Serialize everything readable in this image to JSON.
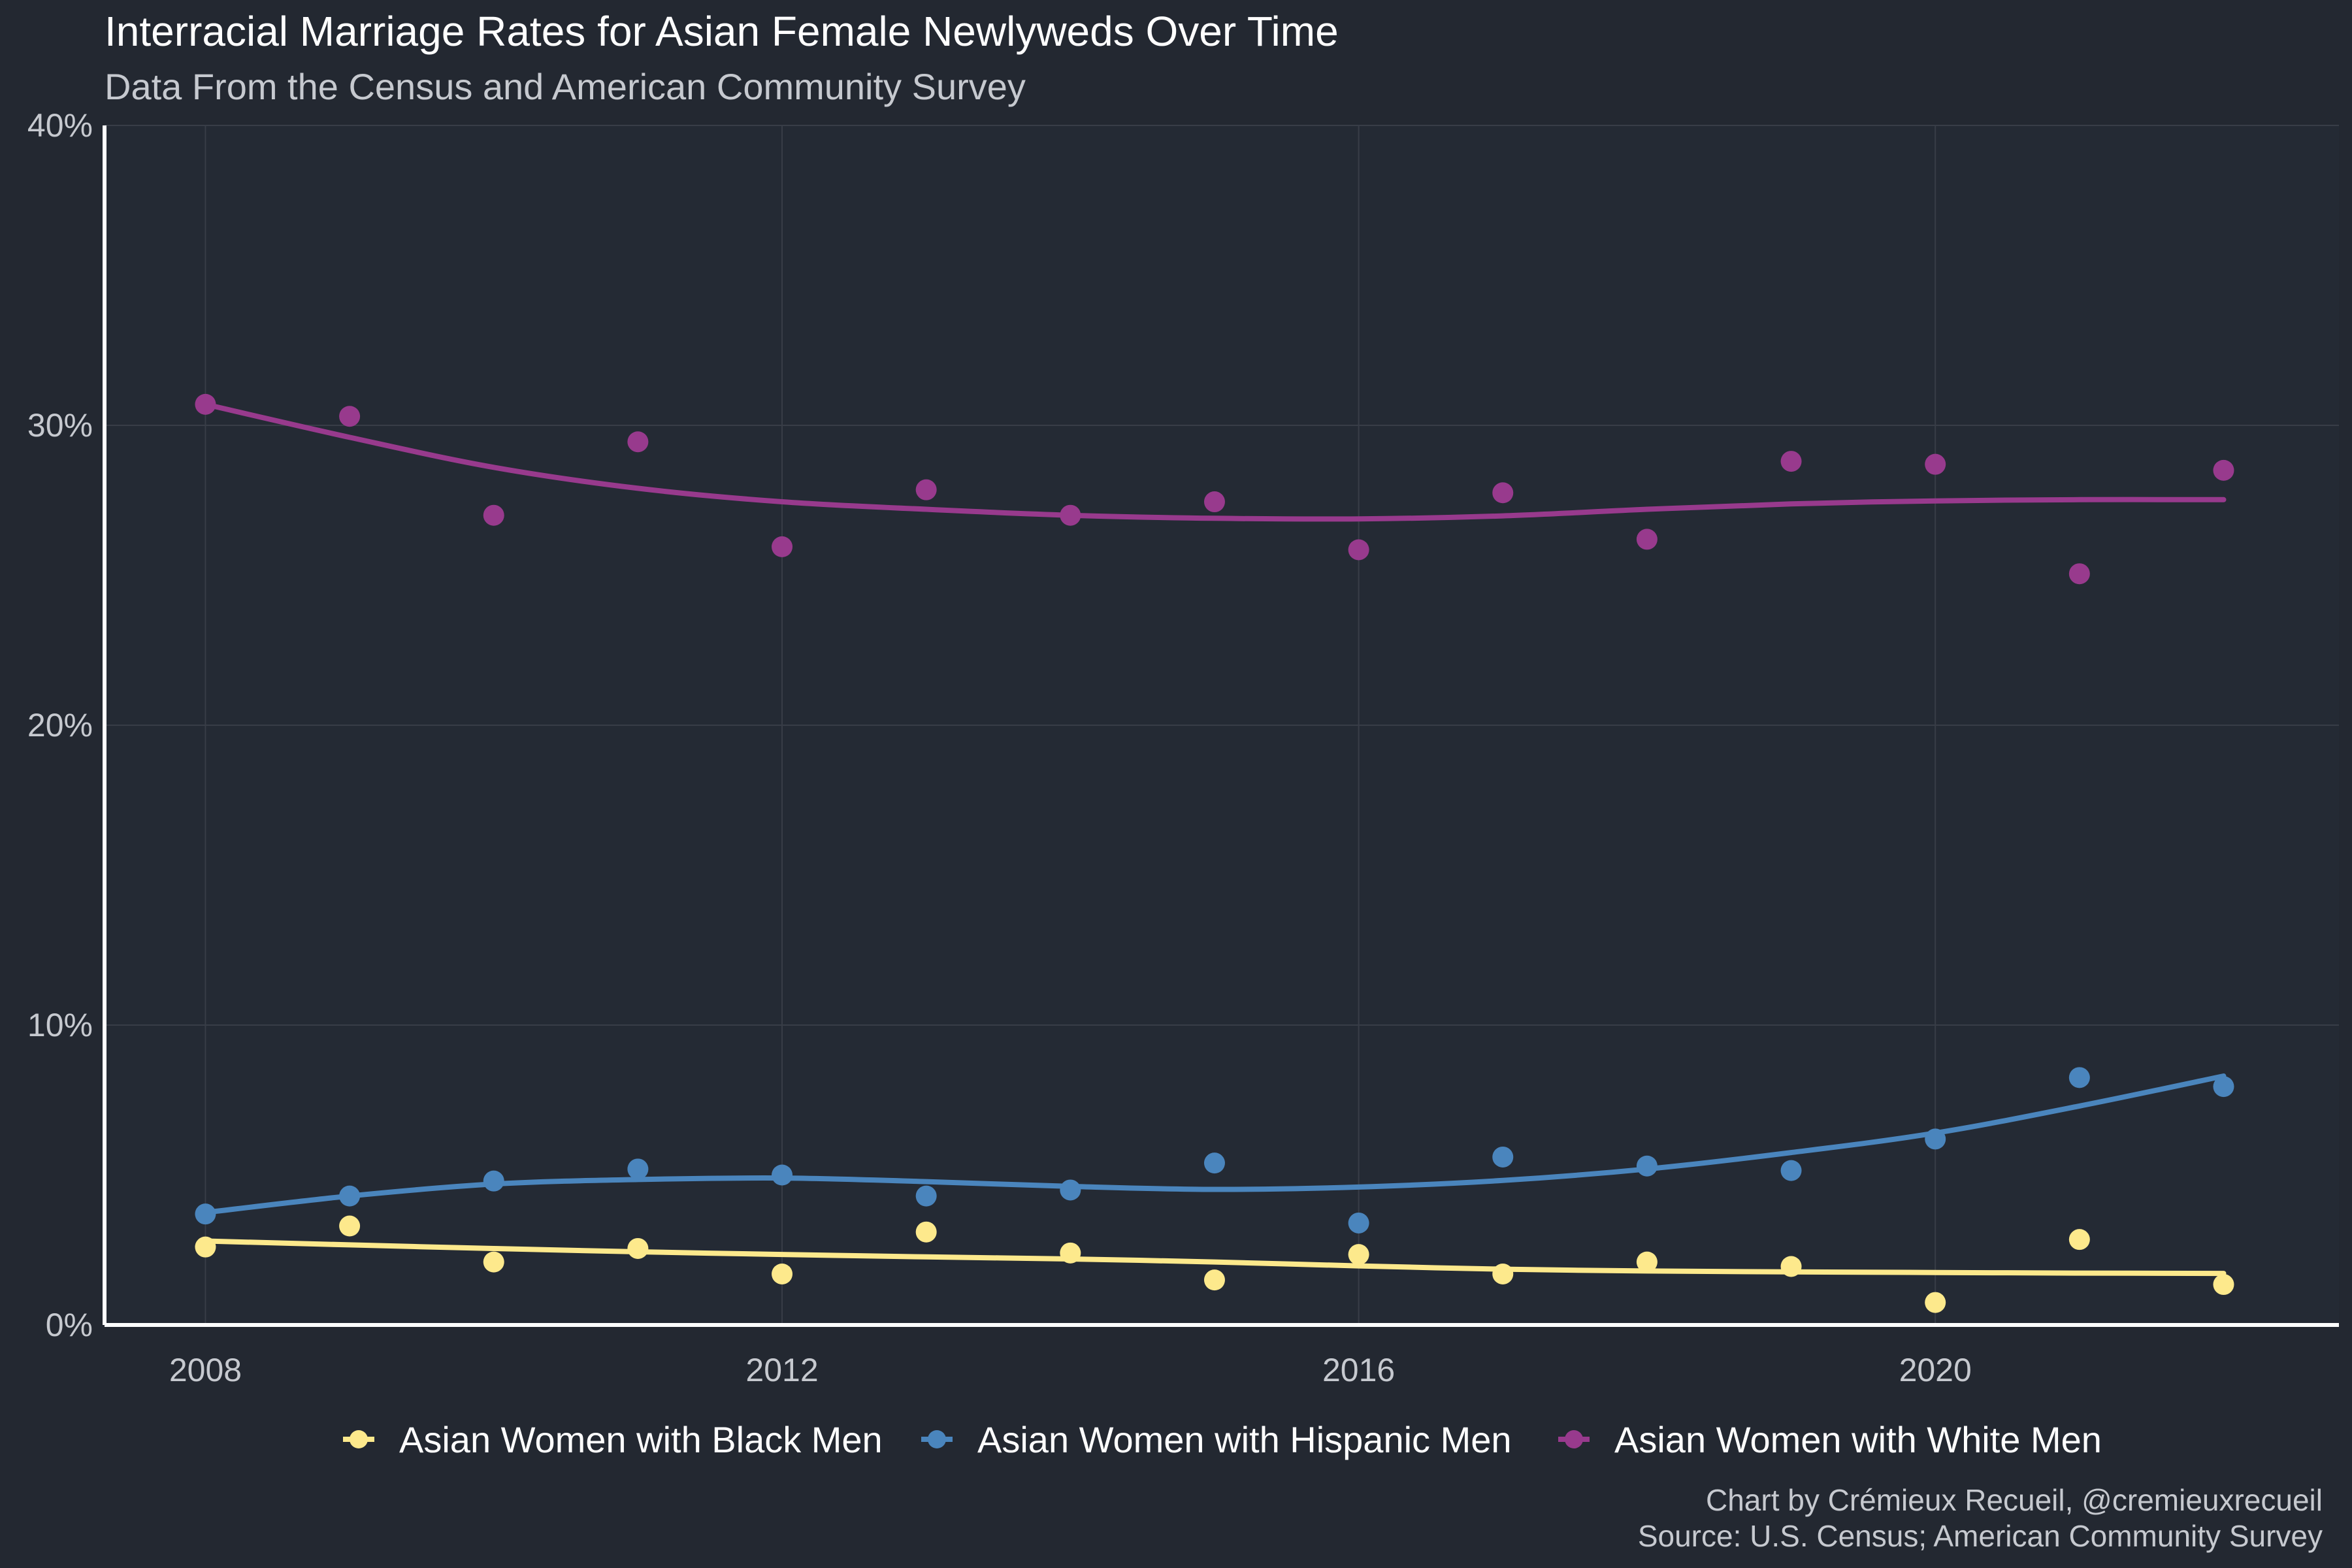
{
  "title": "Interracial Marriage Rates for Asian Female Newlyweds Over Time",
  "subtitle": "Data From the Census and American Community Survey",
  "caption": {
    "line1": "Chart by Crémieux Recueil, @cremieuxrecueil",
    "line2": "Source: U.S. Census; American Community Survey"
  },
  "colors": {
    "background": "#232831",
    "black_men": "#fde98c",
    "hispanic_men": "#4a85bd",
    "white_men": "#983a8d"
  },
  "chart_data": {
    "type": "scatter",
    "x": [
      2008,
      2009,
      2010,
      2011,
      2012,
      2013,
      2014,
      2015,
      2016,
      2017,
      2018,
      2019,
      2020,
      2021,
      2022
    ],
    "xlim": [
      2007.3,
      2022.8
    ],
    "ylim": [
      0,
      40
    ],
    "x_ticks": [
      2008,
      2012,
      2016,
      2020
    ],
    "y_ticks": [
      0,
      10,
      20,
      30,
      40
    ],
    "y_tick_labels": [
      "0%",
      "10%",
      "20%",
      "30%",
      "40%"
    ],
    "grid": true,
    "smooth_line": true,
    "legend_position": "bottom",
    "series": [
      {
        "name": "Asian Women with Black Men",
        "color_key": "black_men",
        "values": [
          2.6,
          3.3,
          2.1,
          2.55,
          1.7,
          3.1,
          2.4,
          1.5,
          2.35,
          1.7,
          2.1,
          1.95,
          0.75,
          2.85,
          1.35
        ],
        "trend": [
          2.8,
          2.67,
          2.55,
          2.44,
          2.35,
          2.27,
          2.2,
          2.1,
          1.97,
          1.86,
          1.8,
          1.77,
          1.75,
          1.73,
          1.72
        ]
      },
      {
        "name": "Asian Women with Hispanic Men",
        "color_key": "hispanic_men",
        "values": [
          3.7,
          4.3,
          4.8,
          5.2,
          5.0,
          4.3,
          4.5,
          5.4,
          3.4,
          5.6,
          5.3,
          5.15,
          6.2,
          8.25,
          7.95
        ],
        "trend": [
          3.75,
          4.3,
          4.7,
          4.85,
          4.9,
          4.78,
          4.62,
          4.52,
          4.6,
          4.82,
          5.2,
          5.75,
          6.4,
          7.3,
          8.3
        ]
      },
      {
        "name": "Asian Women with White Men",
        "color_key": "white_men",
        "values": [
          30.7,
          30.3,
          27.0,
          29.45,
          25.95,
          27.85,
          27.0,
          27.45,
          25.85,
          27.75,
          26.2,
          28.8,
          28.7,
          25.05,
          28.5
        ],
        "trend": [
          30.7,
          29.6,
          28.6,
          27.9,
          27.45,
          27.2,
          27.0,
          26.9,
          26.88,
          26.98,
          27.2,
          27.38,
          27.48,
          27.52,
          27.52
        ]
      }
    ]
  }
}
